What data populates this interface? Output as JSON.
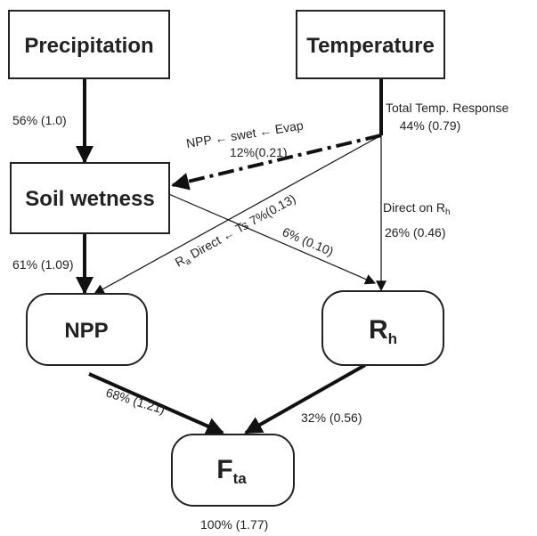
{
  "nodes": [
    {
      "label": "Precipitation"
    },
    {
      "label": "Temperature"
    },
    {
      "label": "Soil wetness"
    },
    {
      "label": "NPP"
    },
    {
      "label": "R",
      "sub": "h"
    },
    {
      "label": "F",
      "sub": "ta"
    }
  ],
  "edges": [
    {
      "label": "56% (1.0)"
    },
    {
      "label": "Total Temp. Response",
      "value": "44% (0.79)"
    },
    {
      "label": "NPP ← swet ← Evap",
      "value": "12%(0.21)"
    },
    {
      "label": "R",
      "sub": "a",
      "rest": " Direct ← Ts 7%(0.13)"
    },
    {
      "label": "6% (0.10)"
    },
    {
      "label": "Direct on R",
      "sub": "h",
      "value": "26% (0.46)"
    },
    {
      "label": "61% (1.09)"
    },
    {
      "label": "68% (1.21)"
    },
    {
      "label": "32% (0.56)"
    }
  ],
  "total": "100% (1.77)"
}
